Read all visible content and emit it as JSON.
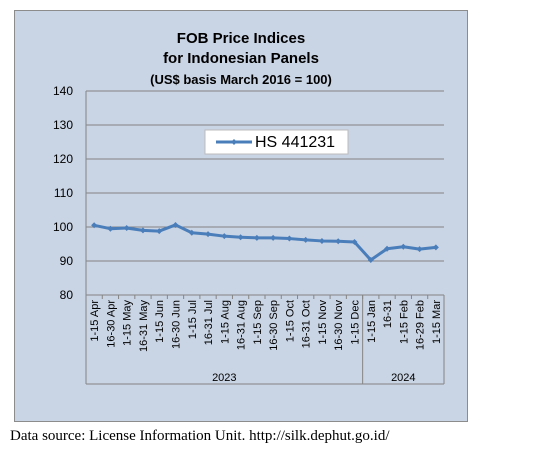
{
  "chart_data": {
    "type": "line",
    "title_lines": [
      "FOB Price Indices",
      "for Indonesian Panels",
      "(US$ basis March 2016 = 100)"
    ],
    "xlabel": "",
    "ylabel": "",
    "ylim": [
      80,
      140
    ],
    "yticks": [
      80,
      90,
      100,
      110,
      120,
      130,
      140
    ],
    "grid": "horizontal",
    "legend_position": "top-center",
    "categories": [
      "1-15 Apr",
      "16-30 Apr",
      "1-15 May",
      "16-31 May",
      "1-15 Jun",
      "16-30 Jun",
      "1-15 Jul",
      "16-31 Jul",
      "1-15 Aug",
      "16-31 Aug",
      "1-15 Sep",
      "16-30 Sep",
      "1-15 Oct",
      "16-31 Oct",
      "1-15 Nov",
      "16-30 Nov",
      "1-15 Dec",
      "1-15 Jan",
      "16-31",
      "1-15 Feb",
      "16-29 Feb",
      "1-15 Mar"
    ],
    "year_groups": [
      {
        "label": "2023",
        "count": 17
      },
      {
        "label": "2024",
        "count": 5
      }
    ],
    "series": [
      {
        "name": "HS 441231",
        "color": "#4a7ebb",
        "values": [
          100.5,
          99.5,
          99.7,
          99.0,
          98.8,
          100.6,
          98.3,
          97.9,
          97.3,
          97.0,
          96.8,
          96.8,
          96.6,
          96.2,
          95.9,
          95.8,
          95.6,
          90.3,
          93.6,
          94.2,
          93.5,
          94.0
        ]
      }
    ]
  },
  "source_note": "Data source: License Information Unit. http://silk.dephut.go.id/"
}
